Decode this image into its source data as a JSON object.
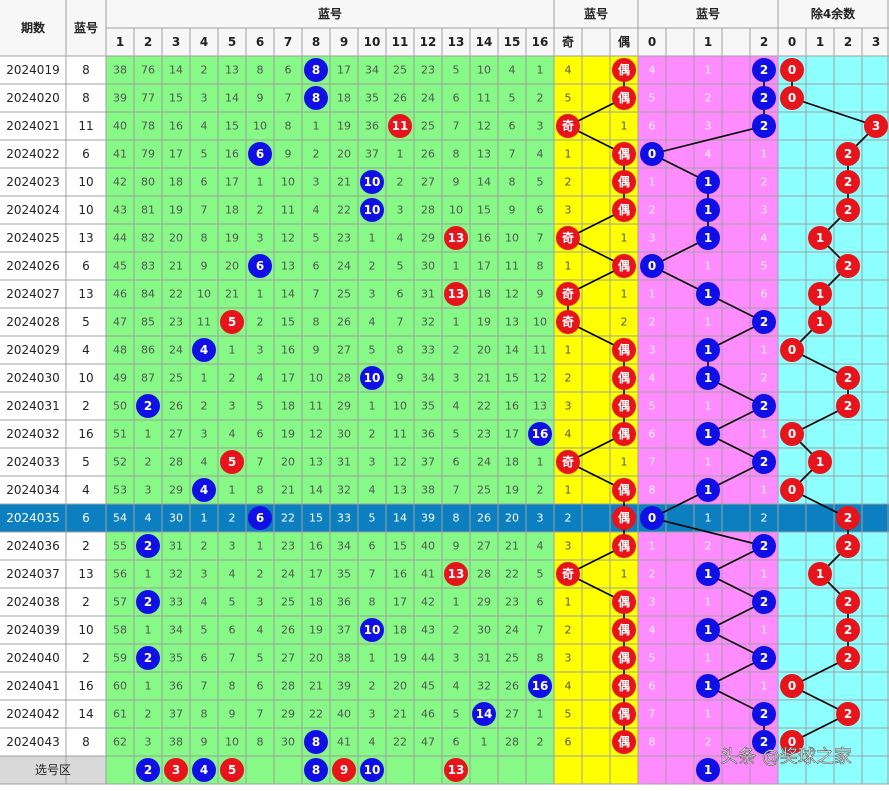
{
  "header": {
    "period": "期数",
    "blue": "蓝号",
    "blue_group": "蓝号",
    "parity_group": "蓝号",
    "mod3_group": "蓝号",
    "mod4_group": "除4余数"
  },
  "blue_columns": [
    1,
    2,
    3,
    4,
    5,
    6,
    7,
    8,
    9,
    10,
    11,
    12,
    13,
    14,
    15,
    16
  ],
  "parity_columns": [
    "奇",
    "偶"
  ],
  "mod3_columns": [
    0,
    1,
    2
  ],
  "mod4_columns": [
    0,
    1,
    2,
    3
  ],
  "highlight_row": 16,
  "colors": {
    "even": "#1010e6",
    "odd": "#e8141b",
    "mod3": "#1010e6",
    "mod4": "#e8141b",
    "parity": "#e8141b"
  },
  "rows": [
    {
      "period": "2024019",
      "blue": 8,
      "miss": [
        38,
        76,
        14,
        2,
        13,
        8,
        6,
        8,
        17,
        34,
        25,
        23,
        5,
        10,
        4,
        1
      ],
      "parity": [
        4,
        "偶"
      ],
      "mod3": [
        4,
        1,
        2
      ],
      "mod4": 0
    },
    {
      "period": "2024020",
      "blue": 8,
      "miss": [
        39,
        77,
        15,
        3,
        14,
        9,
        7,
        8,
        18,
        35,
        26,
        24,
        6,
        11,
        5,
        2
      ],
      "parity": [
        5,
        "偶"
      ],
      "mod3": [
        5,
        2,
        2
      ],
      "mod4": 0
    },
    {
      "period": "2024021",
      "blue": 11,
      "miss": [
        40,
        78,
        16,
        4,
        15,
        10,
        8,
        1,
        19,
        36,
        11,
        25,
        7,
        12,
        6,
        3
      ],
      "parity": [
        "奇",
        1
      ],
      "mod3": [
        6,
        3,
        2
      ],
      "mod4": 3
    },
    {
      "period": "2024022",
      "blue": 6,
      "miss": [
        41,
        79,
        17,
        5,
        16,
        6,
        9,
        2,
        20,
        37,
        1,
        26,
        8,
        13,
        7,
        4
      ],
      "parity": [
        1,
        "偶"
      ],
      "mod3": [
        0,
        4,
        1
      ],
      "mod4": 2
    },
    {
      "period": "2024023",
      "blue": 10,
      "miss": [
        42,
        80,
        18,
        6,
        17,
        1,
        10,
        3,
        21,
        10,
        2,
        27,
        9,
        14,
        8,
        5
      ],
      "parity": [
        2,
        "偶"
      ],
      "mod3": [
        1,
        1,
        2
      ],
      "mod4": 2
    },
    {
      "period": "2024024",
      "blue": 10,
      "miss": [
        43,
        81,
        19,
        7,
        18,
        2,
        11,
        4,
        22,
        10,
        3,
        28,
        10,
        15,
        9,
        6
      ],
      "parity": [
        3,
        "偶"
      ],
      "mod3": [
        2,
        1,
        3
      ],
      "mod4": 2
    },
    {
      "period": "2024025",
      "blue": 13,
      "miss": [
        44,
        82,
        20,
        8,
        19,
        3,
        12,
        5,
        23,
        1,
        4,
        29,
        13,
        16,
        10,
        7
      ],
      "parity": [
        "奇",
        1
      ],
      "mod3": [
        3,
        1,
        4
      ],
      "mod4": 1
    },
    {
      "period": "2024026",
      "blue": 6,
      "miss": [
        45,
        83,
        21,
        9,
        20,
        6,
        13,
        6,
        24,
        2,
        5,
        30,
        1,
        17,
        11,
        8
      ],
      "parity": [
        1,
        "偶"
      ],
      "mod3": [
        0,
        1,
        5
      ],
      "mod4": 2
    },
    {
      "period": "2024027",
      "blue": 13,
      "miss": [
        46,
        84,
        22,
        10,
        21,
        1,
        14,
        7,
        25,
        3,
        6,
        31,
        13,
        18,
        12,
        9
      ],
      "parity": [
        "奇",
        1
      ],
      "mod3": [
        1,
        1,
        6
      ],
      "mod4": 1
    },
    {
      "period": "2024028",
      "blue": 5,
      "miss": [
        47,
        85,
        23,
        11,
        5,
        2,
        15,
        8,
        26,
        4,
        7,
        32,
        1,
        19,
        13,
        10
      ],
      "parity": [
        "奇",
        2
      ],
      "mod3": [
        2,
        1,
        2
      ],
      "mod4": 1
    },
    {
      "period": "2024029",
      "blue": 4,
      "miss": [
        48,
        86,
        24,
        4,
        1,
        3,
        16,
        9,
        27,
        5,
        8,
        33,
        2,
        20,
        14,
        11
      ],
      "parity": [
        1,
        "偶"
      ],
      "mod3": [
        3,
        1,
        1
      ],
      "mod4": 0
    },
    {
      "period": "2024030",
      "blue": 10,
      "miss": [
        49,
        87,
        25,
        1,
        2,
        4,
        17,
        10,
        28,
        10,
        9,
        34,
        3,
        21,
        15,
        12
      ],
      "parity": [
        2,
        "偶"
      ],
      "mod3": [
        4,
        1,
        2
      ],
      "mod4": 2
    },
    {
      "period": "2024031",
      "blue": 2,
      "miss": [
        50,
        2,
        26,
        2,
        3,
        5,
        18,
        11,
        29,
        1,
        10,
        35,
        4,
        22,
        16,
        13
      ],
      "parity": [
        3,
        "偶"
      ],
      "mod3": [
        5,
        1,
        2
      ],
      "mod4": 2
    },
    {
      "period": "2024032",
      "blue": 16,
      "miss": [
        51,
        1,
        27,
        3,
        4,
        6,
        19,
        12,
        30,
        2,
        11,
        36,
        5,
        23,
        17,
        16
      ],
      "parity": [
        4,
        "偶"
      ],
      "mod3": [
        6,
        1,
        1
      ],
      "mod4": 0
    },
    {
      "period": "2024033",
      "blue": 5,
      "miss": [
        52,
        2,
        28,
        4,
        5,
        7,
        20,
        13,
        31,
        3,
        12,
        37,
        6,
        24,
        18,
        1
      ],
      "parity": [
        "奇",
        1
      ],
      "mod3": [
        7,
        1,
        2
      ],
      "mod4": 1
    },
    {
      "period": "2024034",
      "blue": 4,
      "miss": [
        53,
        3,
        29,
        4,
        1,
        8,
        21,
        14,
        32,
        4,
        13,
        38,
        7,
        25,
        19,
        2
      ],
      "parity": [
        1,
        "偶"
      ],
      "mod3": [
        8,
        1,
        1
      ],
      "mod4": 0
    },
    {
      "period": "2024035",
      "blue": 6,
      "miss": [
        54,
        4,
        30,
        1,
        2,
        6,
        22,
        15,
        33,
        5,
        14,
        39,
        8,
        26,
        20,
        3
      ],
      "parity": [
        2,
        "偶"
      ],
      "mod3": [
        0,
        1,
        2
      ],
      "mod4": 2
    },
    {
      "period": "2024036",
      "blue": 2,
      "miss": [
        55,
        2,
        31,
        2,
        3,
        1,
        23,
        16,
        34,
        6,
        15,
        40,
        9,
        27,
        21,
        4
      ],
      "parity": [
        3,
        "偶"
      ],
      "mod3": [
        1,
        2,
        2
      ],
      "mod4": 2
    },
    {
      "period": "2024037",
      "blue": 13,
      "miss": [
        56,
        1,
        32,
        3,
        4,
        2,
        24,
        17,
        35,
        7,
        16,
        41,
        13,
        28,
        22,
        5
      ],
      "parity": [
        "奇",
        1
      ],
      "mod3": [
        2,
        1,
        1
      ],
      "mod4": 1
    },
    {
      "period": "2024038",
      "blue": 2,
      "miss": [
        57,
        2,
        33,
        4,
        5,
        3,
        25,
        18,
        36,
        8,
        17,
        42,
        1,
        29,
        23,
        6
      ],
      "parity": [
        1,
        "偶"
      ],
      "mod3": [
        3,
        1,
        2
      ],
      "mod4": 2
    },
    {
      "period": "2024039",
      "blue": 10,
      "miss": [
        58,
        1,
        34,
        5,
        6,
        4,
        26,
        19,
        37,
        10,
        18,
        43,
        2,
        30,
        24,
        7
      ],
      "parity": [
        2,
        "偶"
      ],
      "mod3": [
        4,
        1,
        1
      ],
      "mod4": 2
    },
    {
      "period": "2024040",
      "blue": 2,
      "miss": [
        59,
        2,
        35,
        6,
        7,
        5,
        27,
        20,
        38,
        1,
        19,
        44,
        3,
        31,
        25,
        8
      ],
      "parity": [
        3,
        "偶"
      ],
      "mod3": [
        5,
        1,
        2
      ],
      "mod4": 2
    },
    {
      "period": "2024041",
      "blue": 16,
      "miss": [
        60,
        1,
        36,
        7,
        8,
        6,
        28,
        21,
        39,
        2,
        20,
        45,
        4,
        32,
        26,
        16
      ],
      "parity": [
        4,
        "偶"
      ],
      "mod3": [
        6,
        1,
        1
      ],
      "mod4": 0
    },
    {
      "period": "2024042",
      "blue": 14,
      "miss": [
        61,
        2,
        37,
        8,
        9,
        7,
        29,
        22,
        40,
        3,
        21,
        46,
        5,
        14,
        27,
        1
      ],
      "parity": [
        5,
        "偶"
      ],
      "mod3": [
        7,
        1,
        2
      ],
      "mod4": 2
    },
    {
      "period": "2024043",
      "blue": 8,
      "miss": [
        62,
        3,
        38,
        9,
        10,
        8,
        30,
        8,
        41,
        4,
        22,
        47,
        6,
        1,
        28,
        2
      ],
      "parity": [
        6,
        "偶"
      ],
      "mod3": [
        8,
        2,
        2
      ],
      "mod4": 0
    }
  ],
  "footer": {
    "label": "选号区",
    "picks": [
      2,
      3,
      4,
      5,
      8,
      9,
      10,
      13
    ],
    "mod3_picks": [
      1
    ]
  },
  "watermark": "头条 @奖球之家"
}
